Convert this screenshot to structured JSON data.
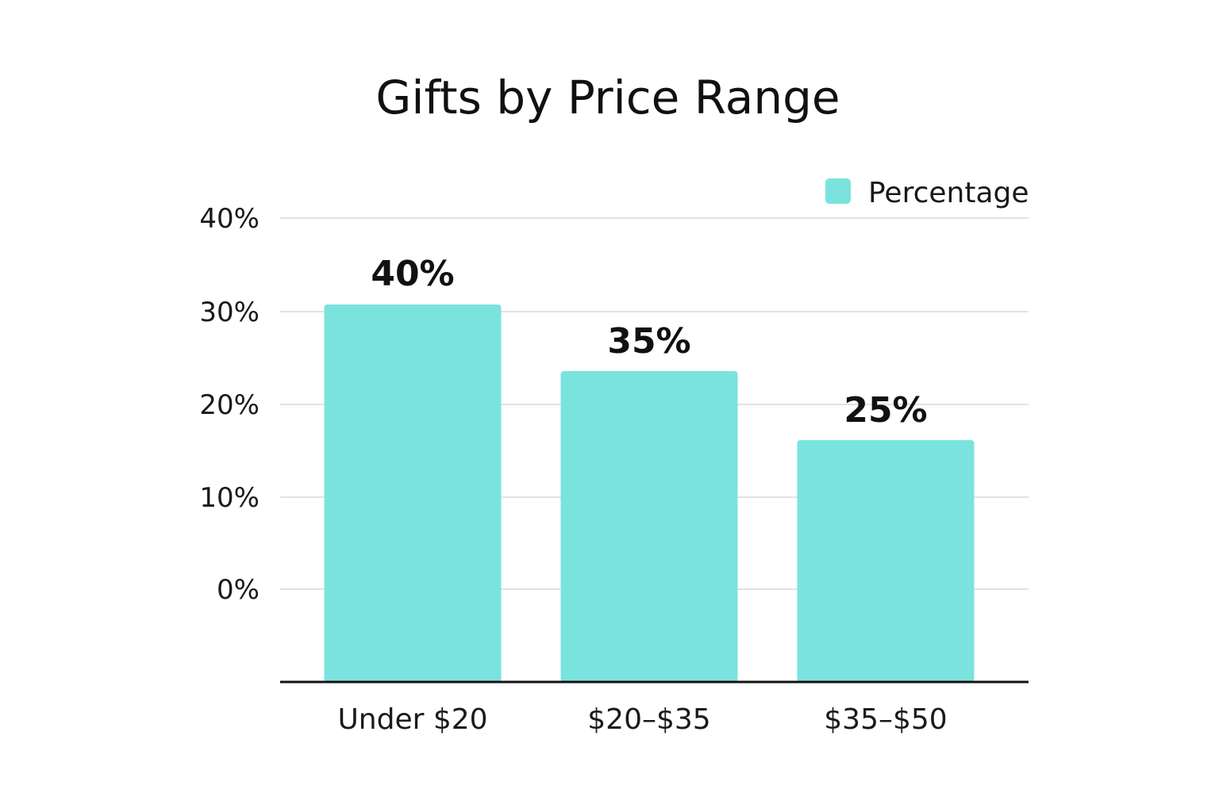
{
  "chart_data": {
    "type": "bar",
    "title": "Gifts by Price Range",
    "categories": [
      "Under $20",
      "$20–$35",
      "$35–$50"
    ],
    "series": [
      {
        "name": "Percentage",
        "values": [
          40,
          35,
          25
        ],
        "color": "#7ae3de"
      }
    ],
    "y_ticks": [
      "0%",
      "10%",
      "20%",
      "30%",
      "40%"
    ],
    "data_labels": [
      "40%",
      "35%",
      "25%"
    ],
    "xlabel": "",
    "ylabel": "",
    "grid": true,
    "legend_position": "top-right"
  }
}
